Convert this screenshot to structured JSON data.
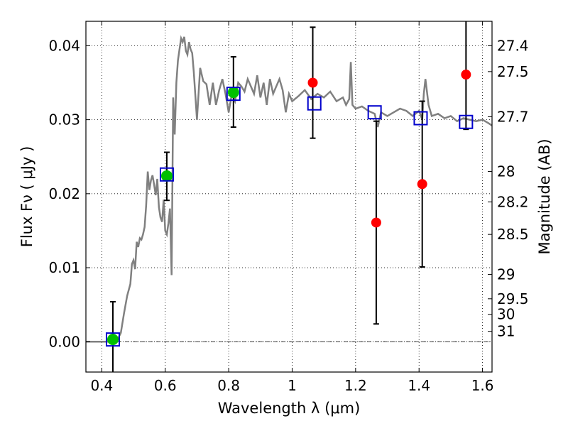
{
  "chart_data": {
    "type": "scatter",
    "title": "",
    "xlabel": "Wavelength  λ (μm)",
    "ylabel": "Flux  Fν  ( μJy )",
    "y2label": "Magnitude (AB)",
    "xlim": [
      0.35,
      1.63
    ],
    "ylim": [
      -0.0041,
      0.0433
    ],
    "grid": true,
    "legend": "none",
    "x_ticks": [
      0.4,
      0.6,
      0.8,
      1.0,
      1.2,
      1.4,
      1.6
    ],
    "x_tick_labels": [
      "0.4",
      "0.6",
      "0.8",
      "1",
      "1.2",
      "1.4",
      "1.6"
    ],
    "y_ticks": [
      0.0,
      0.01,
      0.02,
      0.03,
      0.04
    ],
    "y_tick_labels": [
      "0.00",
      "0.01",
      "0.02",
      "0.03",
      "0.04"
    ],
    "magnitude_ticks": [
      {
        "label": "27.4",
        "flux": 0.04
      },
      {
        "label": "27.5",
        "flux": 0.0365
      },
      {
        "label": "27.7",
        "flux": 0.0304
      },
      {
        "label": "28",
        "flux": 0.023
      },
      {
        "label": "28.2",
        "flux": 0.0189
      },
      {
        "label": "28.5",
        "flux": 0.0145
      },
      {
        "label": "29",
        "flux": 0.0091
      },
      {
        "label": "29.5",
        "flux": 0.0058
      },
      {
        "label": "30",
        "flux": 0.0037
      },
      {
        "label": "31",
        "flux": 0.0014
      }
    ],
    "colors": {
      "model": "#808080",
      "green": "#00c000",
      "red": "#ff0000",
      "square": "#0000cc",
      "errorbar": "#000000",
      "grid": "#000000"
    },
    "series": [
      {
        "type": "line",
        "x": [
          0.35,
          0.43,
          0.44,
          0.45,
          0.46,
          0.47,
          0.48,
          0.49,
          0.495,
          0.5,
          0.505,
          0.51,
          0.515,
          0.52,
          0.525,
          0.53,
          0.535,
          0.54,
          0.545,
          0.55,
          0.555,
          0.56,
          0.565,
          0.57,
          0.575,
          0.58,
          0.585,
          0.59,
          0.595,
          0.6,
          0.605,
          0.61,
          0.615,
          0.62,
          0.625,
          0.63,
          0.635,
          0.64,
          0.645,
          0.65,
          0.655,
          0.66,
          0.665,
          0.67,
          0.675,
          0.68,
          0.685,
          0.69,
          0.7,
          0.71,
          0.72,
          0.73,
          0.74,
          0.75,
          0.76,
          0.77,
          0.78,
          0.79,
          0.8,
          0.81,
          0.82,
          0.83,
          0.84,
          0.85,
          0.86,
          0.87,
          0.88,
          0.89,
          0.9,
          0.91,
          0.92,
          0.93,
          0.94,
          0.95,
          0.96,
          0.97,
          0.98,
          0.99,
          1.0,
          1.02,
          1.04,
          1.06,
          1.08,
          1.1,
          1.12,
          1.14,
          1.16,
          1.17,
          1.18,
          1.185,
          1.19,
          1.2,
          1.22,
          1.24,
          1.26,
          1.27,
          1.28,
          1.3,
          1.32,
          1.34,
          1.36,
          1.38,
          1.4,
          1.41,
          1.415,
          1.42,
          1.43,
          1.44,
          1.46,
          1.48,
          1.5,
          1.52,
          1.54,
          1.56,
          1.58,
          1.6,
          1.62,
          1.63
        ],
        "y": [
          0.0,
          0.0,
          0.0,
          0.0003,
          0.0012,
          0.0038,
          0.0062,
          0.0078,
          0.0105,
          0.011,
          0.0098,
          0.0135,
          0.0128,
          0.014,
          0.0138,
          0.0145,
          0.0155,
          0.0185,
          0.023,
          0.0205,
          0.0218,
          0.0225,
          0.0212,
          0.0198,
          0.022,
          0.0182,
          0.0168,
          0.0162,
          0.0192,
          0.015,
          0.0145,
          0.016,
          0.018,
          0.009,
          0.033,
          0.028,
          0.035,
          0.038,
          0.0395,
          0.041,
          0.0405,
          0.0412,
          0.0393,
          0.0388,
          0.0405,
          0.0395,
          0.039,
          0.0365,
          0.03,
          0.037,
          0.0352,
          0.0348,
          0.032,
          0.035,
          0.032,
          0.034,
          0.0355,
          0.0335,
          0.031,
          0.0335,
          0.0325,
          0.035,
          0.0345,
          0.0338,
          0.0355,
          0.0345,
          0.0335,
          0.036,
          0.033,
          0.035,
          0.032,
          0.0355,
          0.0335,
          0.0345,
          0.0355,
          0.034,
          0.031,
          0.0335,
          0.0325,
          0.0332,
          0.034,
          0.0328,
          0.0335,
          0.033,
          0.0338,
          0.0325,
          0.033,
          0.032,
          0.0328,
          0.0378,
          0.032,
          0.0315,
          0.0318,
          0.0312,
          0.0308,
          0.029,
          0.031,
          0.0305,
          0.031,
          0.0315,
          0.0312,
          0.0305,
          0.0312,
          0.03,
          0.0335,
          0.0355,
          0.032,
          0.0305,
          0.0308,
          0.0302,
          0.0305,
          0.0298,
          0.0302,
          0.03,
          0.0298,
          0.03,
          0.0295,
          0.0292
        ]
      },
      {
        "type": "errorbar",
        "x": [
          0.435,
          0.605,
          0.815,
          1.065,
          1.265,
          1.41,
          1.548
        ],
        "y": [
          0.0003,
          0.0224,
          0.0337,
          0.035,
          0.0161,
          0.0213,
          0.0361
        ],
        "yerr_low": [
          0.0045,
          0.0033,
          0.0047,
          0.0075,
          0.0137,
          0.0112,
          0.0074
        ],
        "yerr_high": [
          0.0051,
          0.0032,
          0.0048,
          0.0075,
          0.0137,
          0.0112,
          0.0074
        ]
      },
      {
        "type": "scatter",
        "marker": "circle",
        "color": "green",
        "x": [
          0.435,
          0.605,
          0.815
        ],
        "y": [
          0.0003,
          0.0224,
          0.0337
        ]
      },
      {
        "type": "scatter",
        "marker": "circle",
        "color": "red",
        "x": [
          1.065,
          1.265,
          1.41,
          1.548
        ],
        "y": [
          0.035,
          0.0161,
          0.0213,
          0.0361
        ]
      },
      {
        "type": "scatter",
        "marker": "open-square",
        "color": "square",
        "x": [
          0.435,
          0.605,
          0.815,
          1.07,
          1.26,
          1.405,
          1.548
        ],
        "y": [
          0.0003,
          0.0226,
          0.0335,
          0.0322,
          0.031,
          0.0302,
          0.0297
        ]
      }
    ]
  }
}
